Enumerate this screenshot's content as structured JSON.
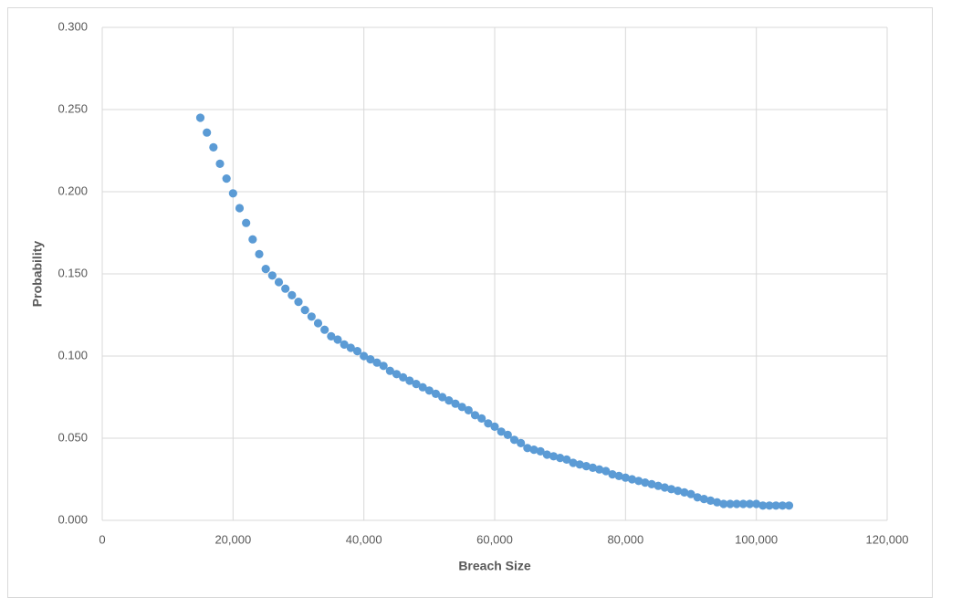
{
  "chart_data": {
    "type": "scatter",
    "x_label": "Breach Size",
    "y_label": "Probability",
    "xlim": [
      0,
      120000
    ],
    "ylim": [
      0,
      0.3
    ],
    "xticks": [
      0,
      {
        "value": 20000,
        "label": "20,000"
      },
      {
        "value": 40000,
        "label": "40,000"
      },
      {
        "value": 60000,
        "label": "60,000"
      },
      {
        "value": 80000,
        "label": "80,000"
      },
      {
        "value": 100000,
        "label": "100,000"
      },
      {
        "value": 120000,
        "label": "120,000"
      }
    ],
    "yticks": [
      {
        "value": 0,
        "label": "0.000"
      },
      {
        "value": 0.05,
        "label": "0.050"
      },
      {
        "value": 0.1,
        "label": "0.100"
      },
      {
        "value": 0.15,
        "label": "0.150"
      },
      {
        "value": 0.2,
        "label": "0.200"
      },
      {
        "value": 0.25,
        "label": "0.250"
      },
      {
        "value": 0.3,
        "label": "0.300"
      }
    ],
    "grid": true,
    "series": [
      {
        "color": "#5b9bd5",
        "x": [
          15000,
          16000,
          17000,
          18000,
          19000,
          20000,
          21000,
          22000,
          23000,
          24000,
          25000,
          26000,
          27000,
          28000,
          29000,
          30000,
          31000,
          32000,
          33000,
          34000,
          35000,
          36000,
          37000,
          38000,
          39000,
          40000,
          41000,
          42000,
          43000,
          44000,
          45000,
          46000,
          47000,
          48000,
          49000,
          50000,
          51000,
          52000,
          53000,
          54000,
          55000,
          56000,
          57000,
          58000,
          59000,
          60000,
          61000,
          62000,
          63000,
          64000,
          65000,
          66000,
          67000,
          68000,
          69000,
          70000,
          71000,
          72000,
          73000,
          74000,
          75000,
          76000,
          77000,
          78000,
          79000,
          80000,
          81000,
          82000,
          83000,
          84000,
          85000,
          86000,
          87000,
          88000,
          89000,
          90000,
          91000,
          92000,
          93000,
          94000,
          95000,
          96000,
          97000,
          98000,
          99000,
          100000,
          101000,
          102000,
          103000,
          104000,
          105000
        ],
        "values": [
          0.245,
          0.236,
          0.227,
          0.217,
          0.208,
          0.199,
          0.19,
          0.181,
          0.171,
          0.162,
          0.153,
          0.149,
          0.145,
          0.141,
          0.137,
          0.133,
          0.128,
          0.124,
          0.12,
          0.116,
          0.112,
          0.11,
          0.107,
          0.105,
          0.103,
          0.1,
          0.098,
          0.096,
          0.094,
          0.091,
          0.089,
          0.087,
          0.085,
          0.083,
          0.081,
          0.079,
          0.077,
          0.075,
          0.073,
          0.071,
          0.069,
          0.067,
          0.064,
          0.062,
          0.059,
          0.057,
          0.054,
          0.052,
          0.049,
          0.047,
          0.044,
          0.043,
          0.042,
          0.04,
          0.039,
          0.038,
          0.037,
          0.035,
          0.034,
          0.033,
          0.032,
          0.031,
          0.03,
          0.028,
          0.027,
          0.026,
          0.025,
          0.024,
          0.023,
          0.022,
          0.021,
          0.02,
          0.019,
          0.018,
          0.017,
          0.016,
          0.014,
          0.013,
          0.012,
          0.011,
          0.01,
          0.01,
          0.01,
          0.01,
          0.01,
          0.01,
          0.009,
          0.009,
          0.009,
          0.009,
          0.009
        ]
      }
    ]
  }
}
